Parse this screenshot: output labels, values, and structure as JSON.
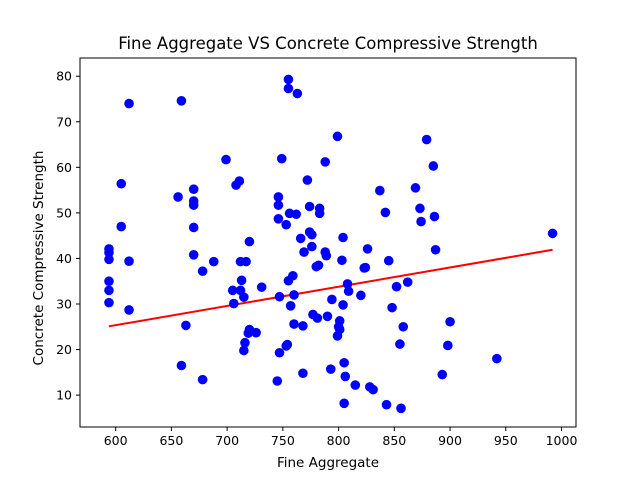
{
  "chart_data": {
    "type": "scatter",
    "title": "Fine Aggregate VS Concrete Compressive Strength",
    "xlabel": "Fine Aggregate",
    "ylabel": "Concrete Compressive Strength",
    "xlim": [
      568,
      1013
    ],
    "ylim": [
      3,
      84
    ],
    "xticks": [
      600,
      650,
      700,
      750,
      800,
      850,
      900,
      950,
      1000
    ],
    "yticks": [
      10,
      20,
      30,
      40,
      50,
      60,
      70,
      80
    ],
    "grid": false,
    "legend": "none",
    "colors": {
      "points": "#0000ff",
      "fit_line": "#ff0000",
      "axes": "#000000"
    },
    "series": [
      {
        "kind": "scatter",
        "points": [
          [
            594,
            42.1
          ],
          [
            594,
            41.3
          ],
          [
            594,
            39.8
          ],
          [
            594,
            35.0
          ],
          [
            594,
            33.0
          ],
          [
            594,
            30.3
          ],
          [
            605,
            56.4
          ],
          [
            605,
            47.0
          ],
          [
            612,
            74.0
          ],
          [
            612,
            39.4
          ],
          [
            612,
            28.7
          ],
          [
            656,
            53.5
          ],
          [
            659,
            74.6
          ],
          [
            659,
            16.5
          ],
          [
            663,
            25.3
          ],
          [
            670,
            55.2
          ],
          [
            670,
            52.6
          ],
          [
            670,
            51.7
          ],
          [
            670,
            46.8
          ],
          [
            670,
            40.8
          ],
          [
            678,
            13.4
          ],
          [
            678,
            37.2
          ],
          [
            688,
            39.3
          ],
          [
            699,
            61.7
          ],
          [
            705,
            33.0
          ],
          [
            706,
            30.1
          ],
          [
            708,
            56.1
          ],
          [
            711,
            57.0
          ],
          [
            712,
            33.0
          ],
          [
            712,
            39.3
          ],
          [
            713,
            35.2
          ],
          [
            715,
            31.5
          ],
          [
            715,
            19.8
          ],
          [
            716,
            21.5
          ],
          [
            717,
            39.3
          ],
          [
            719,
            23.6
          ],
          [
            720,
            43.7
          ],
          [
            720,
            24.4
          ],
          [
            726,
            23.7
          ],
          [
            731,
            33.7
          ],
          [
            745,
            13.1
          ],
          [
            746,
            53.5
          ],
          [
            746,
            51.7
          ],
          [
            746,
            48.7
          ],
          [
            747,
            31.6
          ],
          [
            747,
            19.3
          ],
          [
            749,
            61.9
          ],
          [
            753,
            47.4
          ],
          [
            753,
            20.8
          ],
          [
            754,
            21.1
          ],
          [
            755,
            79.3
          ],
          [
            755,
            77.3
          ],
          [
            755,
            35.1
          ],
          [
            756,
            49.9
          ],
          [
            757,
            29.6
          ],
          [
            759,
            36.2
          ],
          [
            760,
            25.6
          ],
          [
            760,
            32.0
          ],
          [
            762,
            49.7
          ],
          [
            763,
            76.2
          ],
          [
            766,
            44.4
          ],
          [
            768,
            25.2
          ],
          [
            768,
            14.8
          ],
          [
            769,
            41.4
          ],
          [
            772,
            57.2
          ],
          [
            774,
            51.4
          ],
          [
            774,
            45.8
          ],
          [
            776,
            45.2
          ],
          [
            776,
            42.6
          ],
          [
            777,
            27.7
          ],
          [
            780,
            38.2
          ],
          [
            781,
            26.9
          ],
          [
            782,
            38.5
          ],
          [
            783,
            51.0
          ],
          [
            783,
            49.9
          ],
          [
            788,
            61.2
          ],
          [
            788,
            41.4
          ],
          [
            789,
            40.6
          ],
          [
            790,
            27.3
          ],
          [
            793,
            15.7
          ],
          [
            794,
            31.0
          ],
          [
            799,
            66.8
          ],
          [
            799,
            23.0
          ],
          [
            800,
            25.0
          ],
          [
            801,
            26.3
          ],
          [
            801,
            24.4
          ],
          [
            803,
            39.6
          ],
          [
            804,
            44.6
          ],
          [
            804,
            29.8
          ],
          [
            805,
            17.1
          ],
          [
            805,
            8.2
          ],
          [
            806,
            14.1
          ],
          [
            808,
            34.4
          ],
          [
            809,
            32.8
          ],
          [
            815,
            12.2
          ],
          [
            820,
            31.9
          ],
          [
            823,
            37.9
          ],
          [
            824,
            38.0
          ],
          [
            826,
            42.1
          ],
          [
            828,
            11.8
          ],
          [
            831,
            11.2
          ],
          [
            837,
            54.9
          ],
          [
            842,
            50.1
          ],
          [
            843,
            7.9
          ],
          [
            845,
            39.5
          ],
          [
            848,
            29.2
          ],
          [
            852,
            33.8
          ],
          [
            855,
            21.2
          ],
          [
            856,
            7.1
          ],
          [
            858,
            25.0
          ],
          [
            862,
            34.8
          ],
          [
            869,
            55.5
          ],
          [
            873,
            51.0
          ],
          [
            874,
            48.1
          ],
          [
            879,
            66.1
          ],
          [
            885,
            60.3
          ],
          [
            886,
            49.2
          ],
          [
            887,
            41.9
          ],
          [
            893,
            14.5
          ],
          [
            898,
            20.9
          ],
          [
            900,
            26.1
          ],
          [
            942,
            18.0
          ],
          [
            992,
            45.5
          ]
        ]
      },
      {
        "kind": "line",
        "points": [
          [
            594,
            25.1
          ],
          [
            992,
            41.9
          ]
        ]
      }
    ]
  }
}
